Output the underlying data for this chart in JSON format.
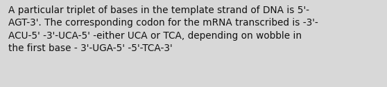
{
  "text": "A particular triplet of bases in the template strand of DNA is 5'-\nAGT-3'. The corresponding codon for the mRNA transcribed is -3'-\nACU-5' -3'-UCA-5' -either UCA or TCA, depending on wobble in\nthe first base - 3'-UGA-5' -5'-TCA-3'",
  "background_color": "#d8d8d8",
  "text_color": "#111111",
  "font_size": 9.8,
  "fig_width": 5.58,
  "fig_height": 1.26,
  "dpi": 100
}
